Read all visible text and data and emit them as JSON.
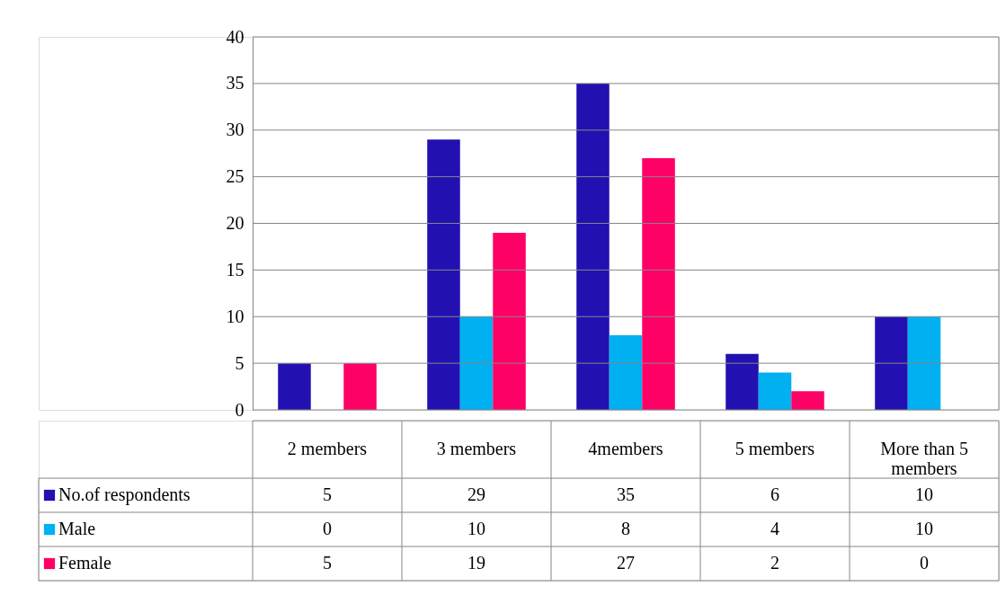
{
  "chart_data": {
    "type": "bar",
    "categories": [
      "2 members",
      "3 members",
      "4members",
      "5 members",
      "More than 5 members"
    ],
    "series": [
      {
        "name": "No.of respondents",
        "color": "#2211b0",
        "values": [
          5,
          29,
          35,
          6,
          10
        ]
      },
      {
        "name": "Male",
        "color": "#00b0f0",
        "values": [
          0,
          10,
          8,
          4,
          10
        ]
      },
      {
        "name": "Female",
        "color": "#ff0066",
        "values": [
          5,
          19,
          27,
          2,
          0
        ]
      }
    ],
    "ylim": [
      0,
      40
    ],
    "yticks": [
      0,
      5,
      10,
      15,
      20,
      25,
      30,
      35,
      40
    ],
    "grid": "y",
    "legend": "bottom left",
    "data_labels": true
  }
}
